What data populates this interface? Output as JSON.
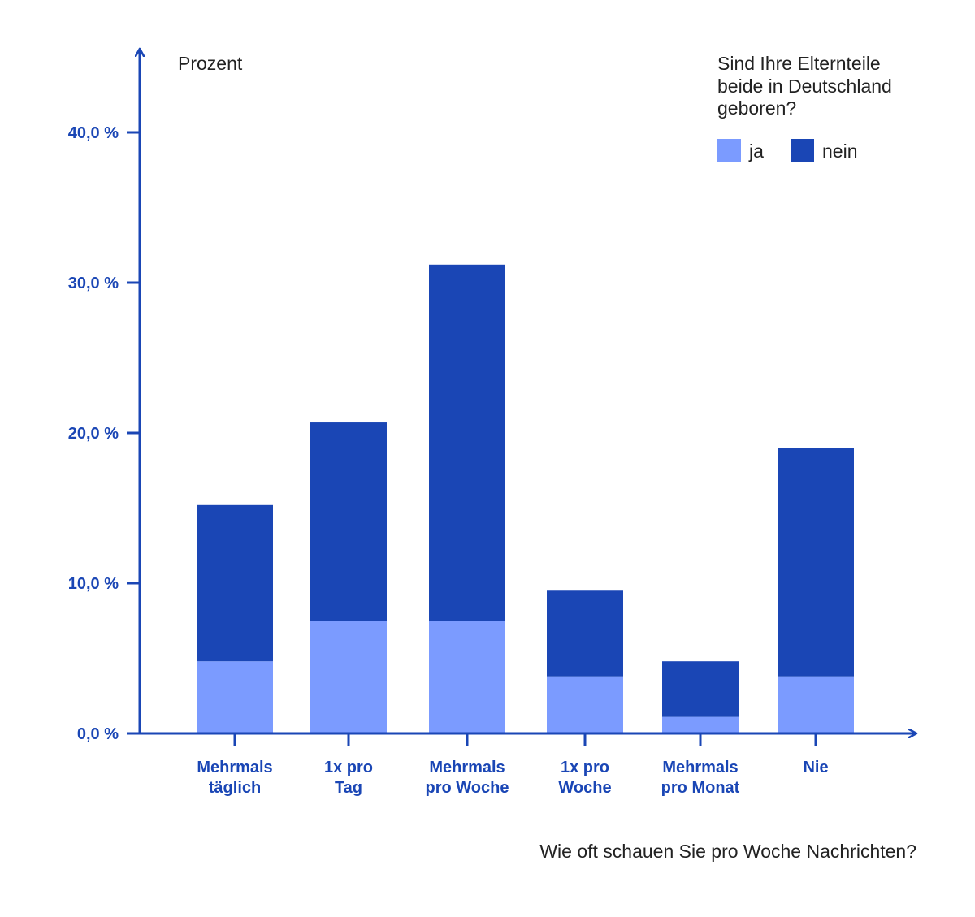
{
  "chart_data": {
    "type": "bar",
    "stacked": true,
    "title": "",
    "ylabel": "Prozent",
    "xlabel": "Wie oft schauen Sie pro Woche Nachrichten?",
    "legend_title": [
      "Sind Ihre Elternteile",
      "beide in Deutschland",
      "geboren?"
    ],
    "legend_position": "top-right",
    "ylim": [
      0,
      40
    ],
    "y_ticks": [
      0,
      10,
      20,
      30,
      40
    ],
    "y_tick_labels": [
      "0,0 %",
      "10,0 %",
      "20,0 %",
      "30,0 %",
      "40,0 %"
    ],
    "grid": false,
    "categories": [
      [
        "Mehrmals",
        "täglich"
      ],
      [
        "1x pro",
        "Tag"
      ],
      [
        "Mehrmals",
        "pro Woche"
      ],
      [
        "1x pro",
        "Woche"
      ],
      [
        "Mehrmals",
        "pro Monat"
      ],
      [
        "Nie"
      ]
    ],
    "series": [
      {
        "name": "ja",
        "color": "#7b9bff",
        "values": [
          4.8,
          7.5,
          7.5,
          3.8,
          1.1,
          3.8
        ]
      },
      {
        "name": "nein",
        "color": "#1a46b5",
        "values": [
          10.4,
          13.2,
          23.7,
          5.7,
          3.7,
          15.2
        ]
      }
    ],
    "axis_color": "#1a46b5"
  }
}
